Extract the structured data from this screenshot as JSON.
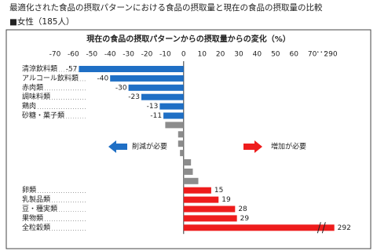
{
  "chart_data": {
    "type": "bar",
    "orientation": "horizontal",
    "title": "最適化された食品の摂取パターンにおける食品の摂取量と現在の食品の摂取量の比較",
    "subtitle": "■女性（185人）",
    "chart_title": "現在の食品の摂取パターンからの摂取量からの変化（%）",
    "categories": [
      "清涼飲料類",
      "アルコール飲料類",
      "赤肉類",
      "調味料類",
      "鶏肉",
      "砂糖・菓子類",
      null,
      null,
      null,
      null,
      null,
      null,
      null,
      "卵類",
      "乳製品類",
      "豆・種実類",
      "果物類",
      "全粒穀類"
    ],
    "series": [
      {
        "color": "#1f6fc5",
        "data_labels": true,
        "values": [
          -57,
          -40,
          -30,
          -23,
          -13,
          -11,
          null,
          null,
          null,
          null,
          null,
          null,
          null,
          null,
          null,
          null,
          null,
          null
        ]
      },
      {
        "color": "#8c8c8c",
        "data_labels": false,
        "values": [
          null,
          null,
          null,
          null,
          null,
          null,
          -10,
          -3,
          -3,
          -2,
          4,
          5,
          8,
          null,
          null,
          null,
          null,
          null
        ]
      },
      {
        "color": "#ee1c1c",
        "data_labels": true,
        "values": [
          null,
          null,
          null,
          null,
          null,
          null,
          null,
          null,
          null,
          null,
          null,
          null,
          null,
          15,
          19,
          28,
          29,
          292
        ]
      }
    ],
    "xlim": [
      -70,
      290
    ],
    "xticks": [
      -70,
      -60,
      -50,
      -40,
      -30,
      -20,
      -10,
      0,
      10,
      20,
      30,
      40,
      50,
      60,
      70,
      290
    ],
    "axis_break": [
      75,
      285
    ],
    "axis_break_label": "･･･",
    "annotations": [
      "削減が必要",
      "増加が必要"
    ]
  }
}
